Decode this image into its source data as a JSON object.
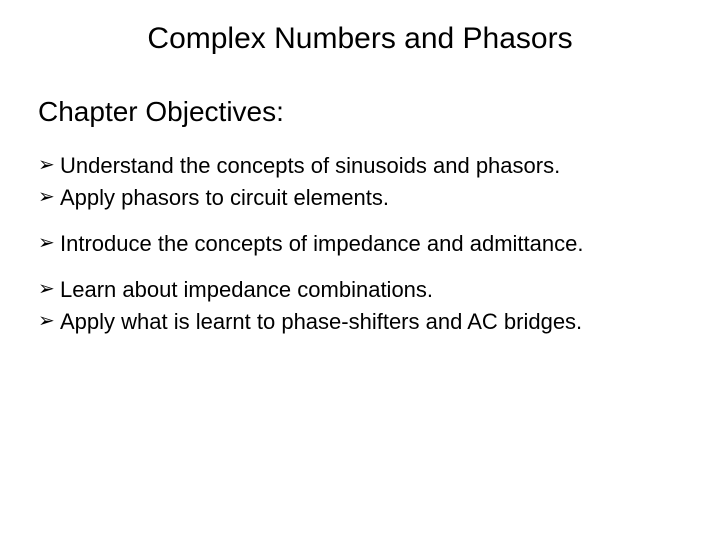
{
  "title": "Complex Numbers and Phasors",
  "subtitle": "Chapter Objectives:",
  "bullet_marker": "➢",
  "colors": {
    "background": "#ffffff",
    "text": "#000000",
    "bullet": "#000000"
  },
  "typography": {
    "font_family": "Comic Sans MS",
    "title_fontsize_pt": 30,
    "subtitle_fontsize_pt": 28,
    "body_fontsize_pt": 22
  },
  "groups": [
    {
      "items": [
        "Understand the concepts of sinusoids and phasors.",
        "Apply phasors to circuit elements."
      ]
    },
    {
      "items": [
        "Introduce the concepts of impedance and admittance."
      ]
    },
    {
      "items": [
        "Learn about impedance combinations.",
        "Apply what is learnt to phase-shifters and AC bridges."
      ]
    }
  ]
}
